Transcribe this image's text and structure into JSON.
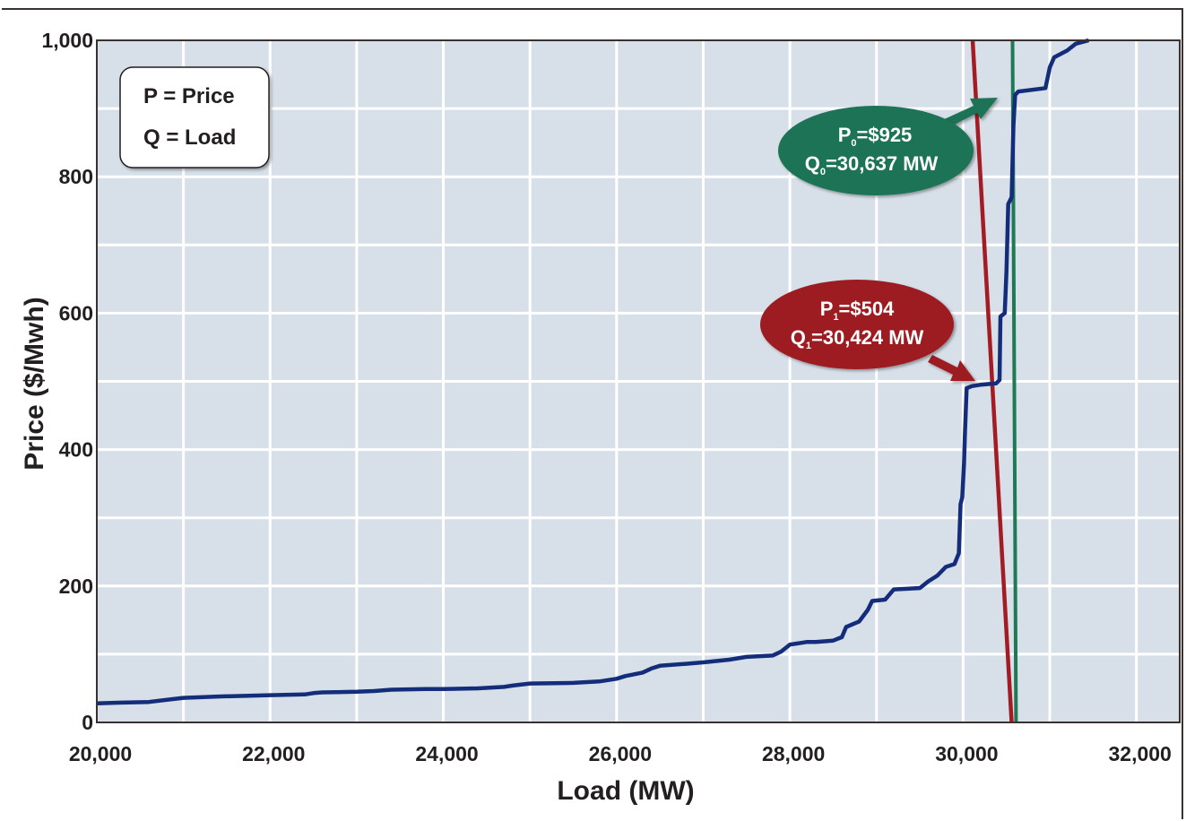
{
  "chart_data": {
    "type": "line",
    "title": "",
    "xlabel": "Load (MW)",
    "ylabel": "Price ($/Mwh)",
    "xlim": [
      20000,
      32500
    ],
    "ylim": [
      0,
      1000
    ],
    "grid": true,
    "xticks": [
      20000,
      22000,
      24000,
      26000,
      28000,
      30000,
      32000
    ],
    "xtick_labels": [
      "20,000",
      "22,000",
      "24,000",
      "26,000",
      "28,000",
      "30,000",
      "32,000"
    ],
    "yticks": [
      0,
      200,
      400,
      600,
      800,
      1000
    ],
    "ytick_labels": [
      "0",
      "200",
      "400",
      "600",
      "800",
      "1,000"
    ],
    "legend_box": [
      "P = Price",
      "Q = Load"
    ],
    "colors": {
      "plot_bg": "#d7dfe8",
      "grid": "#ffffff",
      "supply": "#132d7a",
      "demand_0": "#1d7a55",
      "demand_1": "#a31c24",
      "label_0": "#1f7355",
      "label_1": "#9c1d24"
    },
    "series": [
      {
        "key": "supply",
        "points": [
          [
            20000,
            28
          ],
          [
            20300,
            29
          ],
          [
            20600,
            30
          ],
          [
            20800,
            33
          ],
          [
            21000,
            36
          ],
          [
            21400,
            38
          ],
          [
            22000,
            40
          ],
          [
            22400,
            41
          ],
          [
            22500,
            43
          ],
          [
            22600,
            44
          ],
          [
            23000,
            45
          ],
          [
            23200,
            46
          ],
          [
            23400,
            48
          ],
          [
            23800,
            49
          ],
          [
            24000,
            49
          ],
          [
            24400,
            50
          ],
          [
            24700,
            52
          ],
          [
            24800,
            54
          ],
          [
            25000,
            57
          ],
          [
            25500,
            58
          ],
          [
            25800,
            60
          ],
          [
            26000,
            64
          ],
          [
            26100,
            68
          ],
          [
            26300,
            73
          ],
          [
            26400,
            79
          ],
          [
            26500,
            83
          ],
          [
            26800,
            86
          ],
          [
            27000,
            88
          ],
          [
            27300,
            92
          ],
          [
            27500,
            96
          ],
          [
            27800,
            98
          ],
          [
            27900,
            104
          ],
          [
            28000,
            114
          ],
          [
            28200,
            118
          ],
          [
            28300,
            118
          ],
          [
            28500,
            120
          ],
          [
            28600,
            125
          ],
          [
            28650,
            140
          ],
          [
            28800,
            148
          ],
          [
            28900,
            165
          ],
          [
            28950,
            178
          ],
          [
            29100,
            180
          ],
          [
            29200,
            195
          ],
          [
            29500,
            197
          ],
          [
            29600,
            207
          ],
          [
            29700,
            215
          ],
          [
            29800,
            228
          ],
          [
            29900,
            232
          ],
          [
            29950,
            248
          ],
          [
            29970,
            320
          ],
          [
            29990,
            330
          ],
          [
            30000,
            355
          ],
          [
            30010,
            380
          ],
          [
            30020,
            420
          ],
          [
            30040,
            490
          ],
          [
            30100,
            493
          ],
          [
            30200,
            495
          ],
          [
            30380,
            497
          ],
          [
            30420,
            502
          ],
          [
            30430,
            595
          ],
          [
            30480,
            600
          ],
          [
            30500,
            660
          ],
          [
            30520,
            760
          ],
          [
            30560,
            770
          ],
          [
            30580,
            875
          ],
          [
            30600,
            920
          ],
          [
            30637,
            925
          ],
          [
            30950,
            930
          ],
          [
            31000,
            960
          ],
          [
            31050,
            975
          ],
          [
            31200,
            985
          ],
          [
            31300,
            995
          ],
          [
            31450,
            1000
          ]
        ]
      },
      {
        "key": "demand_0",
        "points": [
          [
            30570,
            1000
          ],
          [
            30610,
            0
          ]
        ]
      },
      {
        "key": "demand_1",
        "points": [
          [
            30110,
            1000
          ],
          [
            30560,
            0
          ]
        ]
      }
    ],
    "annotations": [
      {
        "key": "label_0",
        "line1": "P",
        "sub1": "0",
        "rest1": "=$925",
        "line2": "Q",
        "sub2": "0",
        "rest2": "=30,637 MW"
      },
      {
        "key": "label_1",
        "line1": "P",
        "sub1": "1",
        "rest1": "=$504",
        "line2": "Q",
        "sub2": "1",
        "rest2": "=30,424 MW"
      }
    ]
  }
}
